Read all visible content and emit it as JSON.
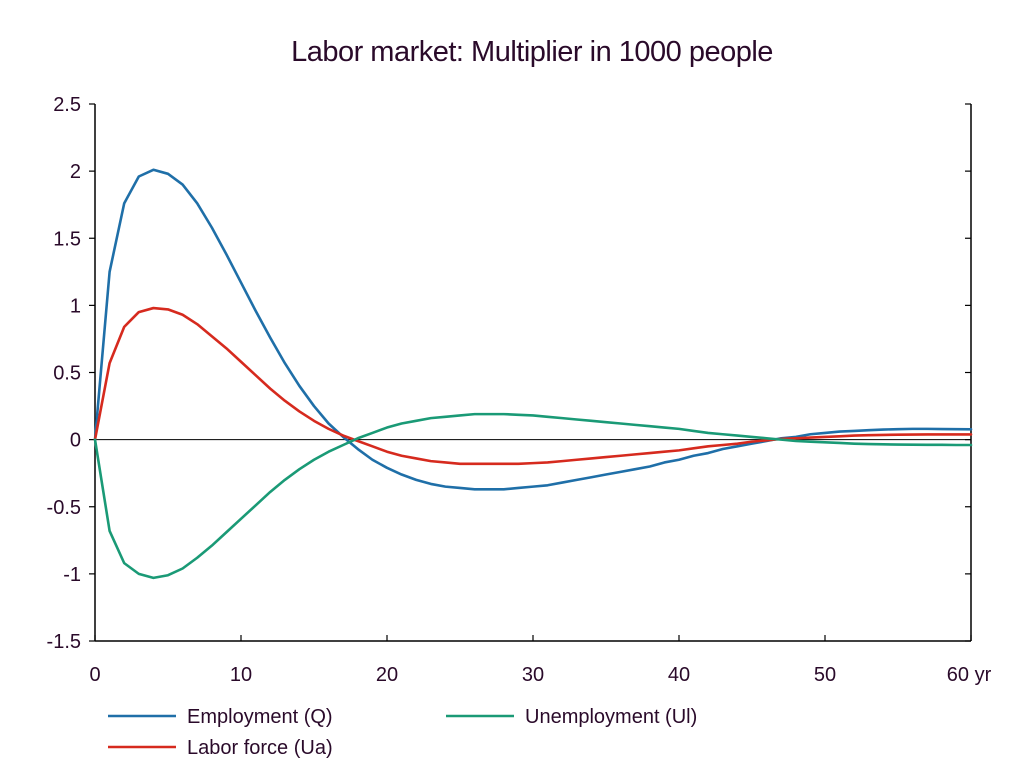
{
  "chart_data": {
    "type": "line",
    "title": "Labor market: Multiplier in 1000 people",
    "xlabel": "",
    "ylabel": "",
    "xlim": [
      0,
      60
    ],
    "ylim": [
      -1.5,
      2.5
    ],
    "x_ticks": [
      0,
      10,
      20,
      30,
      40,
      50,
      60
    ],
    "x_tick_labels": [
      "0",
      "10",
      "20",
      "30",
      "40",
      "50",
      "60 yr"
    ],
    "y_ticks": [
      2.5,
      2,
      1.5,
      1,
      0.5,
      0,
      -0.5,
      -1,
      -1.5
    ],
    "y_tick_labels": [
      "2.5",
      "2",
      "1.5",
      "1",
      "0.5",
      "0",
      "-0.5",
      "-1",
      "-1.5"
    ],
    "grid": false,
    "legend_position": "bottom",
    "x": [
      0,
      1,
      2,
      3,
      4,
      5,
      6,
      7,
      8,
      9,
      10,
      11,
      12,
      13,
      14,
      15,
      16,
      17,
      18,
      19,
      20,
      21,
      22,
      23,
      24,
      25,
      26,
      27,
      28,
      29,
      30,
      31,
      32,
      33,
      34,
      35,
      36,
      37,
      38,
      39,
      40,
      41,
      42,
      43,
      44,
      45,
      46,
      47,
      48,
      49,
      50,
      51,
      52,
      53,
      54,
      55,
      56,
      57,
      58,
      59,
      60
    ],
    "series": [
      {
        "name": "Employment (Q)",
        "color": "#1f6fa8",
        "values": [
          0,
          1.25,
          1.76,
          1.96,
          2.01,
          1.98,
          1.9,
          1.76,
          1.58,
          1.38,
          1.17,
          0.96,
          0.76,
          0.57,
          0.4,
          0.25,
          0.12,
          0.02,
          -0.07,
          -0.15,
          -0.21,
          -0.26,
          -0.3,
          -0.33,
          -0.35,
          -0.36,
          -0.37,
          -0.37,
          -0.37,
          -0.36,
          -0.35,
          -0.34,
          -0.32,
          -0.3,
          -0.28,
          -0.26,
          -0.24,
          -0.22,
          -0.2,
          -0.17,
          -0.15,
          -0.12,
          -0.1,
          -0.07,
          -0.05,
          -0.03,
          -0.01,
          0.01,
          0.02,
          0.04,
          0.05,
          0.06,
          0.065,
          0.07,
          0.075,
          0.078,
          0.08,
          0.08,
          0.079,
          0.078,
          0.077
        ]
      },
      {
        "name": "Labor force (Ua)",
        "color": "#d62a1e",
        "values": [
          0,
          0.57,
          0.84,
          0.95,
          0.98,
          0.97,
          0.93,
          0.86,
          0.77,
          0.68,
          0.58,
          0.48,
          0.38,
          0.29,
          0.21,
          0.14,
          0.08,
          0.03,
          -0.01,
          -0.05,
          -0.09,
          -0.12,
          -0.14,
          -0.16,
          -0.17,
          -0.18,
          -0.18,
          -0.18,
          -0.18,
          -0.18,
          -0.175,
          -0.17,
          -0.16,
          -0.15,
          -0.14,
          -0.13,
          -0.12,
          -0.11,
          -0.1,
          -0.09,
          -0.08,
          -0.065,
          -0.05,
          -0.04,
          -0.03,
          -0.015,
          -0.005,
          0.005,
          0.01,
          0.015,
          0.02,
          0.025,
          0.03,
          0.033,
          0.035,
          0.037,
          0.038,
          0.039,
          0.039,
          0.039,
          0.039
        ]
      },
      {
        "name": "Unemployment (Ul)",
        "color": "#1a9a76",
        "values": [
          0,
          -0.68,
          -0.92,
          -1.0,
          -1.03,
          -1.01,
          -0.96,
          -0.88,
          -0.79,
          -0.69,
          -0.59,
          -0.49,
          -0.39,
          -0.3,
          -0.22,
          -0.15,
          -0.09,
          -0.04,
          0.01,
          0.05,
          0.09,
          0.12,
          0.14,
          0.16,
          0.17,
          0.18,
          0.19,
          0.19,
          0.19,
          0.185,
          0.18,
          0.17,
          0.16,
          0.15,
          0.14,
          0.13,
          0.12,
          0.11,
          0.1,
          0.09,
          0.08,
          0.065,
          0.05,
          0.04,
          0.03,
          0.02,
          0.01,
          0.0,
          -0.01,
          -0.015,
          -0.02,
          -0.025,
          -0.03,
          -0.033,
          -0.035,
          -0.037,
          -0.038,
          -0.039,
          -0.039,
          -0.04,
          -0.04
        ]
      }
    ]
  },
  "legend": {
    "items": [
      {
        "label": "Employment (Q)",
        "color": "#1f6fa8"
      },
      {
        "label": "Unemployment (Ul)",
        "color": "#1a9a76"
      },
      {
        "label": "Labor force (Ua)",
        "color": "#d62a1e"
      }
    ]
  }
}
